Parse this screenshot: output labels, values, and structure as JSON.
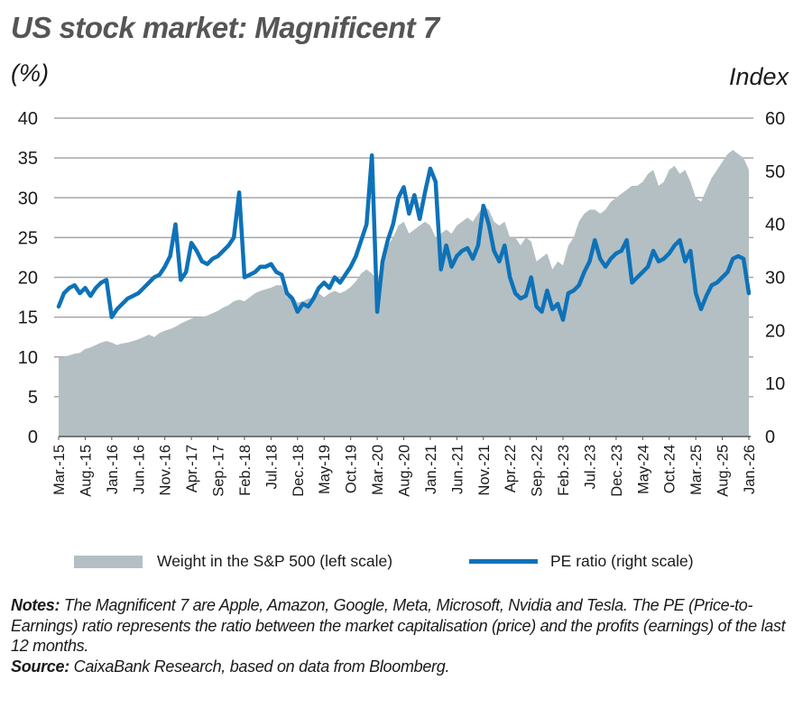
{
  "header": {
    "title": "US stock market: Magnificent 7",
    "left_unit": "(%)",
    "right_unit": "Index"
  },
  "colors": {
    "area": "#b3bfc3",
    "line": "#0e72b8",
    "grid": "#a6a6a6"
  },
  "chart_data": {
    "type": "area+line",
    "title": "US stock market: Magnificent 7",
    "ylabel_left": "(%)",
    "ylabel_right": "Index",
    "ylim_left": [
      0,
      40
    ],
    "ylim_right": [
      0,
      60
    ],
    "yticks_left": [
      "0",
      "5",
      "10",
      "15",
      "20",
      "25",
      "30",
      "35",
      "40"
    ],
    "yticks_right": [
      "0",
      "10",
      "20",
      "30",
      "40",
      "50",
      "60"
    ],
    "grid": true,
    "x_start": "2015-03",
    "x_end": "2026-01",
    "x_tick_labels": [
      "Mar.-15",
      "Aug.-15",
      "Jan.-16",
      "Jun.-16",
      "Nov.-16",
      "Apr.-17",
      "Sep.-17",
      "Feb.-18",
      "Jul.-18",
      "Dec.-18",
      "May-19",
      "Oct.-19",
      "Mar.-20",
      "Aug.-20",
      "Jan.-21",
      "Jun.-21",
      "Nov.-21",
      "Apr.-22",
      "Sep.-22",
      "Feb.-23",
      "Jul.-23",
      "Dec.-23",
      "May-24",
      "Oct.-24",
      "Mar.-25",
      "Aug.-25",
      "Jan.-26"
    ],
    "legend_position": "bottom",
    "series": [
      {
        "name": "Weight in the S&P 500 (left scale)",
        "axis": "left",
        "kind": "area",
        "values": [
          10,
          10,
          10.2,
          10.4,
          10.5,
          11,
          11.2,
          11.5,
          11.8,
          12,
          11.8,
          11.5,
          11.7,
          11.8,
          12,
          12.2,
          12.5,
          12.8,
          12.5,
          13,
          13.3,
          13.5,
          13.8,
          14.2,
          14.5,
          14.8,
          15,
          15,
          15.2,
          15.5,
          15.8,
          16.2,
          16.5,
          17,
          17.2,
          17,
          17.5,
          18,
          18.3,
          18.5,
          18.7,
          19,
          19,
          17.5,
          17.8,
          16.8,
          17,
          17.3,
          17.5,
          18,
          17.5,
          18,
          18.3,
          18,
          18.3,
          18.8,
          19.5,
          20.5,
          21,
          20.5,
          19.5,
          22,
          24,
          25,
          26.5,
          27,
          25.5,
          26,
          26.5,
          27,
          26.5,
          25,
          25.5,
          26,
          25.5,
          26.5,
          27,
          27.5,
          27,
          28,
          29,
          28.5,
          27,
          26.5,
          27,
          25,
          25,
          24,
          25,
          24.5,
          22,
          22.5,
          23,
          21,
          22,
          21.5,
          24,
          25,
          27,
          28,
          28.5,
          28.5,
          28,
          28.5,
          29.5,
          30,
          30.5,
          31,
          31.5,
          31.5,
          32,
          33,
          33.5,
          31.5,
          32,
          33.5,
          34,
          33,
          33.5,
          32,
          30,
          29.5,
          31,
          32.5,
          33.5,
          34.5,
          35.5,
          36,
          35.5,
          35,
          33.5
        ]
      },
      {
        "name": "PE ratio (right scale)",
        "axis": "right",
        "kind": "line",
        "values": [
          24.5,
          27,
          28,
          28.5,
          27,
          28,
          26.5,
          28,
          29,
          29.5,
          22.5,
          24,
          25,
          26,
          26.5,
          27,
          28,
          29,
          30,
          30.5,
          32,
          34,
          40,
          29.5,
          31,
          36.5,
          35,
          33,
          32.5,
          33.5,
          34,
          35,
          36,
          37.5,
          46,
          30,
          30.5,
          31,
          32,
          32,
          32.5,
          31,
          30.5,
          27,
          26,
          23.5,
          25,
          24.5,
          26,
          28,
          29,
          28,
          30,
          29,
          30.5,
          32,
          34,
          37,
          40,
          53,
          23.5,
          33,
          37,
          40,
          45,
          47,
          42,
          45.5,
          41,
          46,
          50.5,
          48,
          31.5,
          36,
          32,
          34,
          35,
          35.5,
          33.5,
          36,
          43.5,
          40,
          35,
          33,
          36,
          30,
          27,
          26,
          26.5,
          30,
          24.5,
          23.5,
          27.5,
          24,
          25,
          22,
          27,
          27.5,
          28.5,
          31,
          33,
          37,
          33.5,
          32,
          33.5,
          34.5,
          35,
          37,
          29,
          30,
          31,
          32,
          35,
          33,
          33.5,
          34.5,
          36,
          37,
          33,
          35,
          27,
          24,
          26.5,
          28.5,
          29,
          30,
          31,
          33.5,
          34,
          33.5,
          27
        ]
      }
    ]
  },
  "legend": {
    "area_label": "Weight in the S&P 500 (left scale)",
    "line_label": "PE ratio (right scale)"
  },
  "notes": {
    "notes_label": "Notes:",
    "notes_text": "The Magnificent 7 are Apple, Amazon, Google, Meta, Microsoft, Nvidia and Tesla. The PE (Price-to-Earnings) ratio represents the ratio between the market capitalisation (price) and the profits (earnings) of the last 12 months.",
    "source_label": "Source:",
    "source_text": "CaixaBank Research, based on data from Bloomberg."
  }
}
